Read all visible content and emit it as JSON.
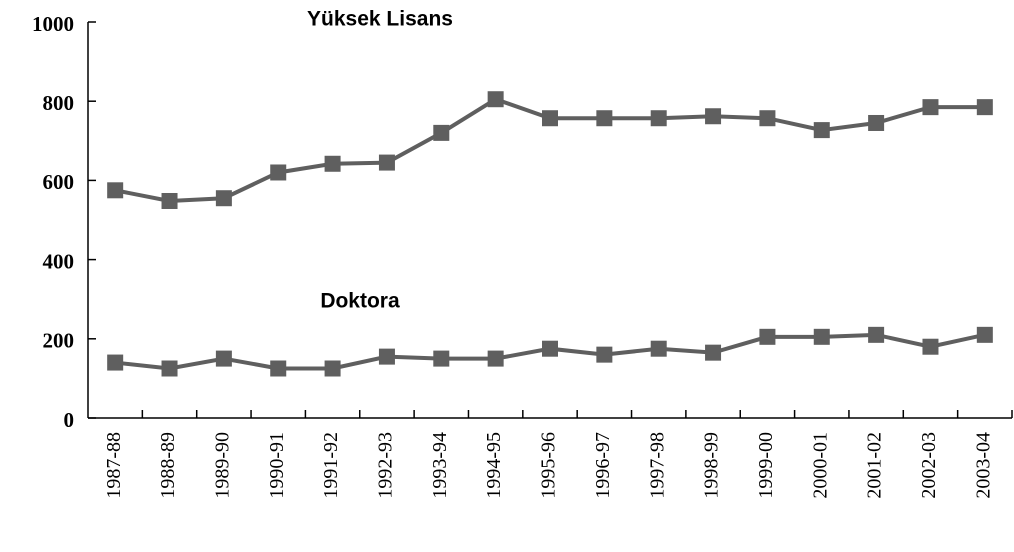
{
  "chart_data": {
    "type": "line",
    "categories": [
      "1987-88",
      "1988-89",
      "1989-90",
      "1990-91",
      "1991-92",
      "1992-93",
      "1993-94",
      "1994-95",
      "1995-96",
      "1996-97",
      "1997-98",
      "1998-99",
      "1999-00",
      "2000-01",
      "2001-02",
      "2002-03",
      "2003-04"
    ],
    "series": [
      {
        "name": "Yüksek Lisans",
        "color": "#5f5f5f",
        "values": [
          575,
          548,
          555,
          620,
          642,
          645,
          720,
          805,
          757,
          757,
          757,
          762,
          757,
          727,
          745,
          785,
          785
        ]
      },
      {
        "name": "Doktora",
        "color": "#5f5f5f",
        "values": [
          140,
          125,
          150,
          125,
          125,
          155,
          150,
          150,
          175,
          160,
          175,
          165,
          205,
          205,
          210,
          180,
          210
        ]
      }
    ],
    "ylim": [
      0,
      1000
    ],
    "yticks": [
      0,
      200,
      400,
      600,
      800,
      1000
    ]
  }
}
